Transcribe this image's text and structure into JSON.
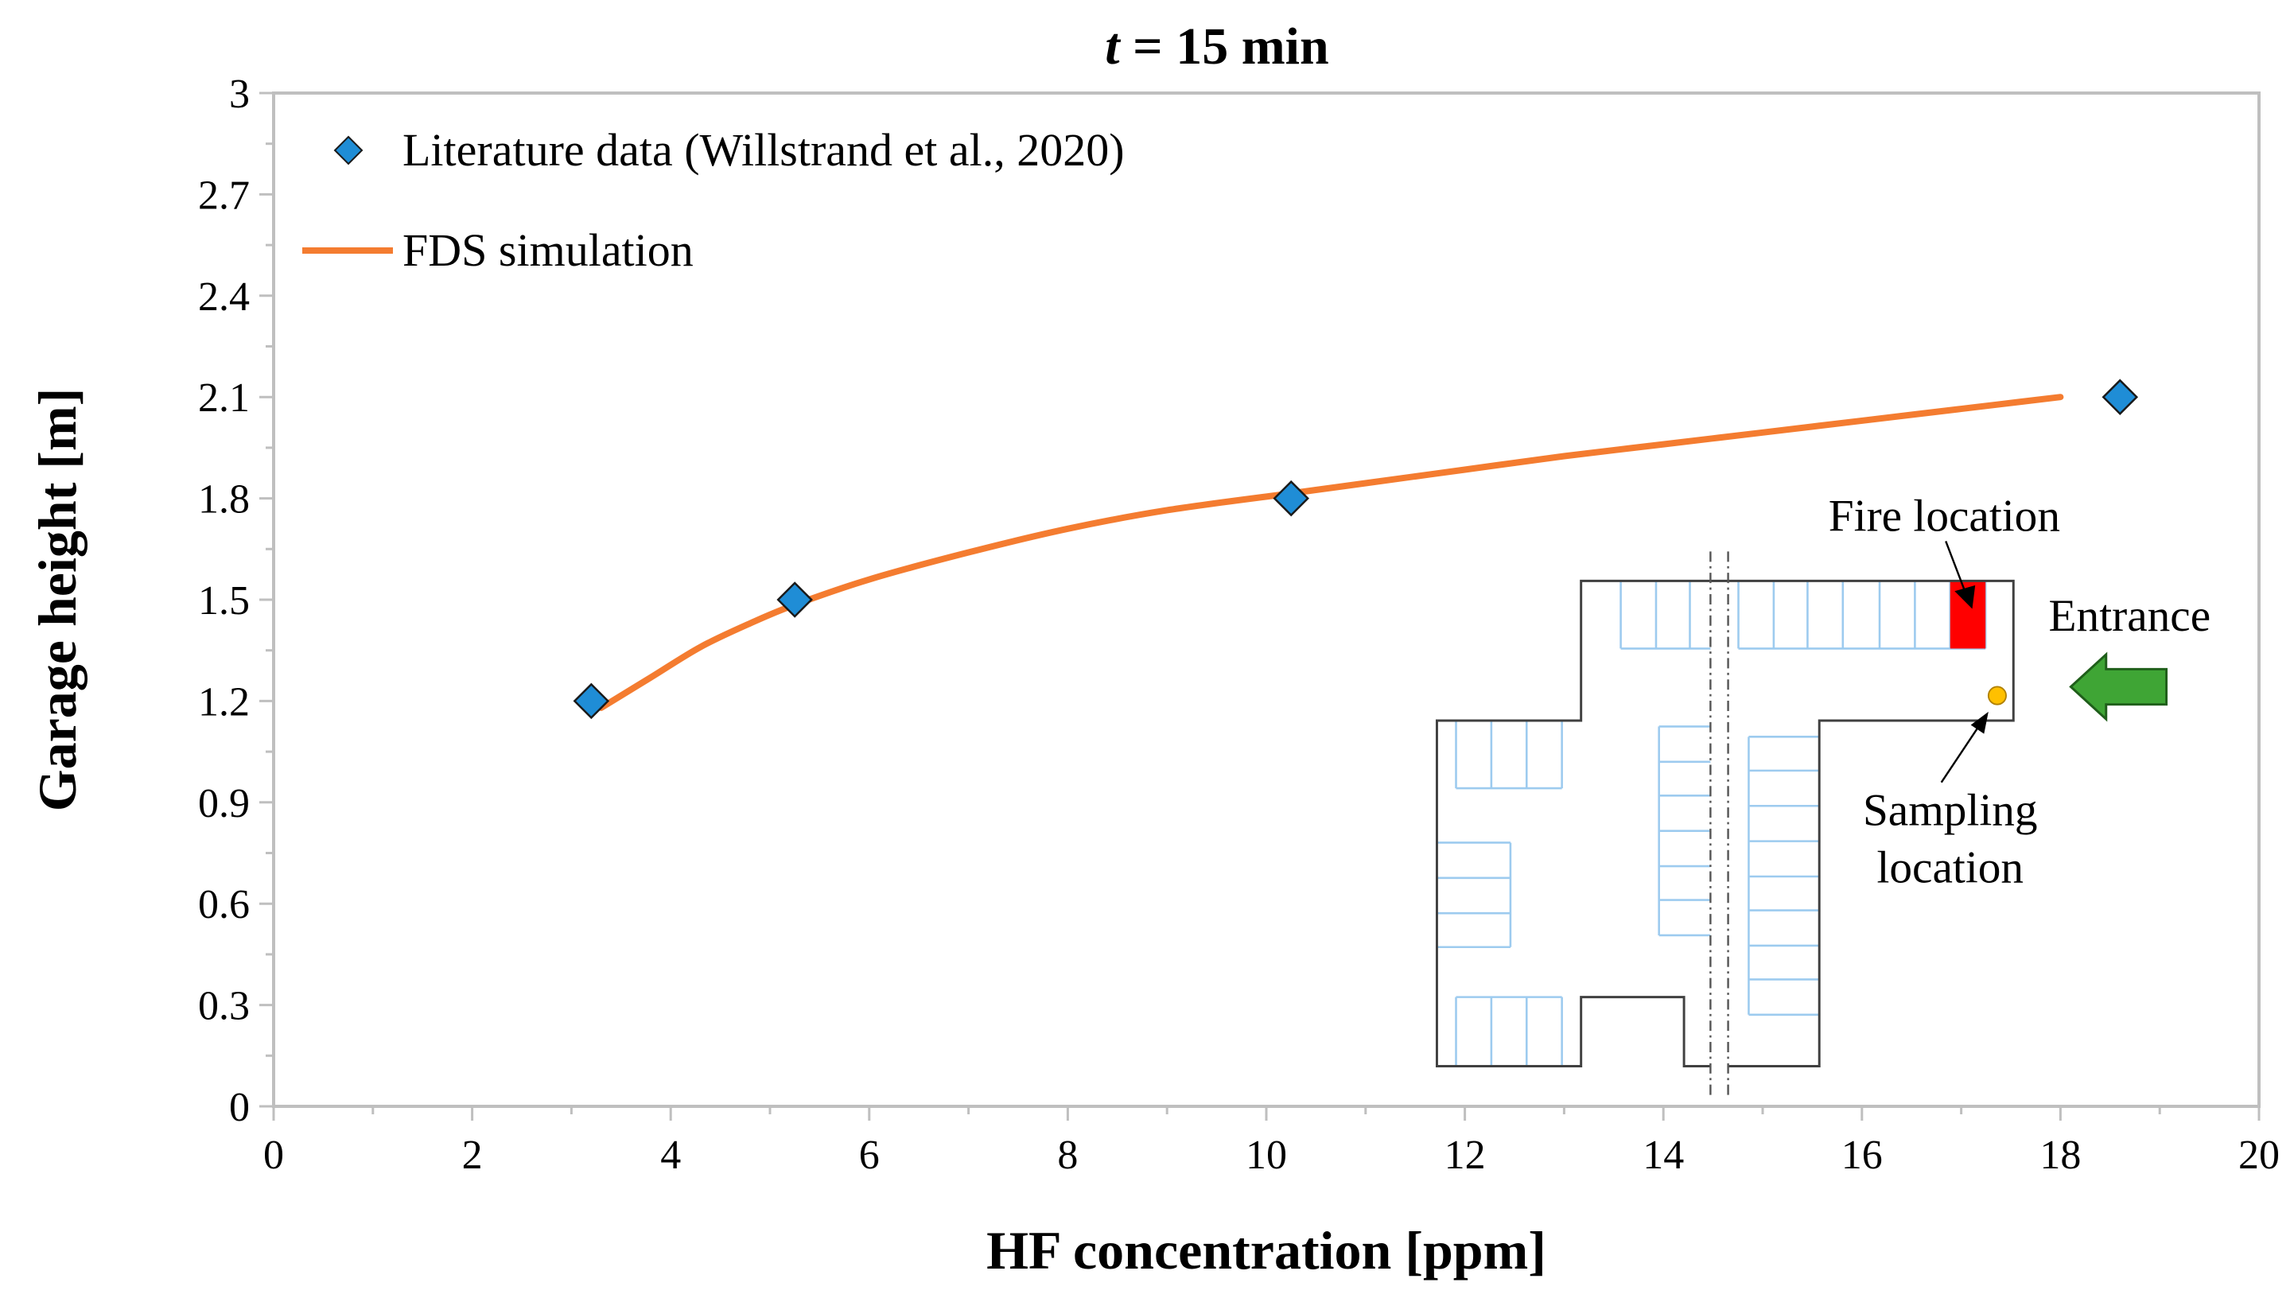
{
  "chart_data": {
    "type": "scatter",
    "title_var": "t",
    "title_rest": " = 15 min",
    "xlabel": "HF concentration [ppm]",
    "ylabel": "Garage height [m]",
    "xlim": [
      0,
      20
    ],
    "ylim": [
      0,
      3
    ],
    "xticks": [
      0,
      2,
      4,
      6,
      8,
      10,
      12,
      14,
      16,
      18,
      20
    ],
    "yticks": [
      0,
      0.3,
      0.6,
      0.9,
      1.2,
      1.5,
      1.8,
      2.1,
      2.4,
      2.7,
      3
    ],
    "ytick_labels": [
      "0",
      "0.3",
      "0.6",
      "0.9",
      "1.2",
      "1.5",
      "1.8",
      "2.1",
      "2.4",
      "2.7",
      "3"
    ],
    "grid": false,
    "legend_placement": "top-left",
    "series": [
      {
        "name": "Literature data (Willstrand et al., 2020)",
        "kind": "marker-diamond",
        "color": "#1f8dd6",
        "x": [
          3.2,
          5.25,
          10.25,
          18.6
        ],
        "y": [
          1.2,
          1.5,
          1.8,
          2.1
        ]
      },
      {
        "name": "FDS simulation",
        "kind": "line",
        "color": "#f47c30",
        "x": [
          3.3,
          3.8,
          4.3,
          4.8,
          5.25,
          6,
          7,
          8,
          9,
          10.25,
          11,
          12,
          13,
          14,
          15,
          16,
          17,
          18
        ],
        "y": [
          1.18,
          1.27,
          1.36,
          1.43,
          1.485,
          1.56,
          1.64,
          1.71,
          1.765,
          1.815,
          1.845,
          1.885,
          1.925,
          1.96,
          1.995,
          2.03,
          2.065,
          2.1
        ]
      }
    ],
    "inset": {
      "fire_label": "Fire location",
      "entrance_label": "Entrance",
      "sampling_label_1": "Sampling",
      "sampling_label_2": "location",
      "fire_color": "#ff0000",
      "sampling_color": "#ffc000",
      "entrance_arrow_color": "#3fa535",
      "stall_color": "#9dcbef"
    }
  }
}
